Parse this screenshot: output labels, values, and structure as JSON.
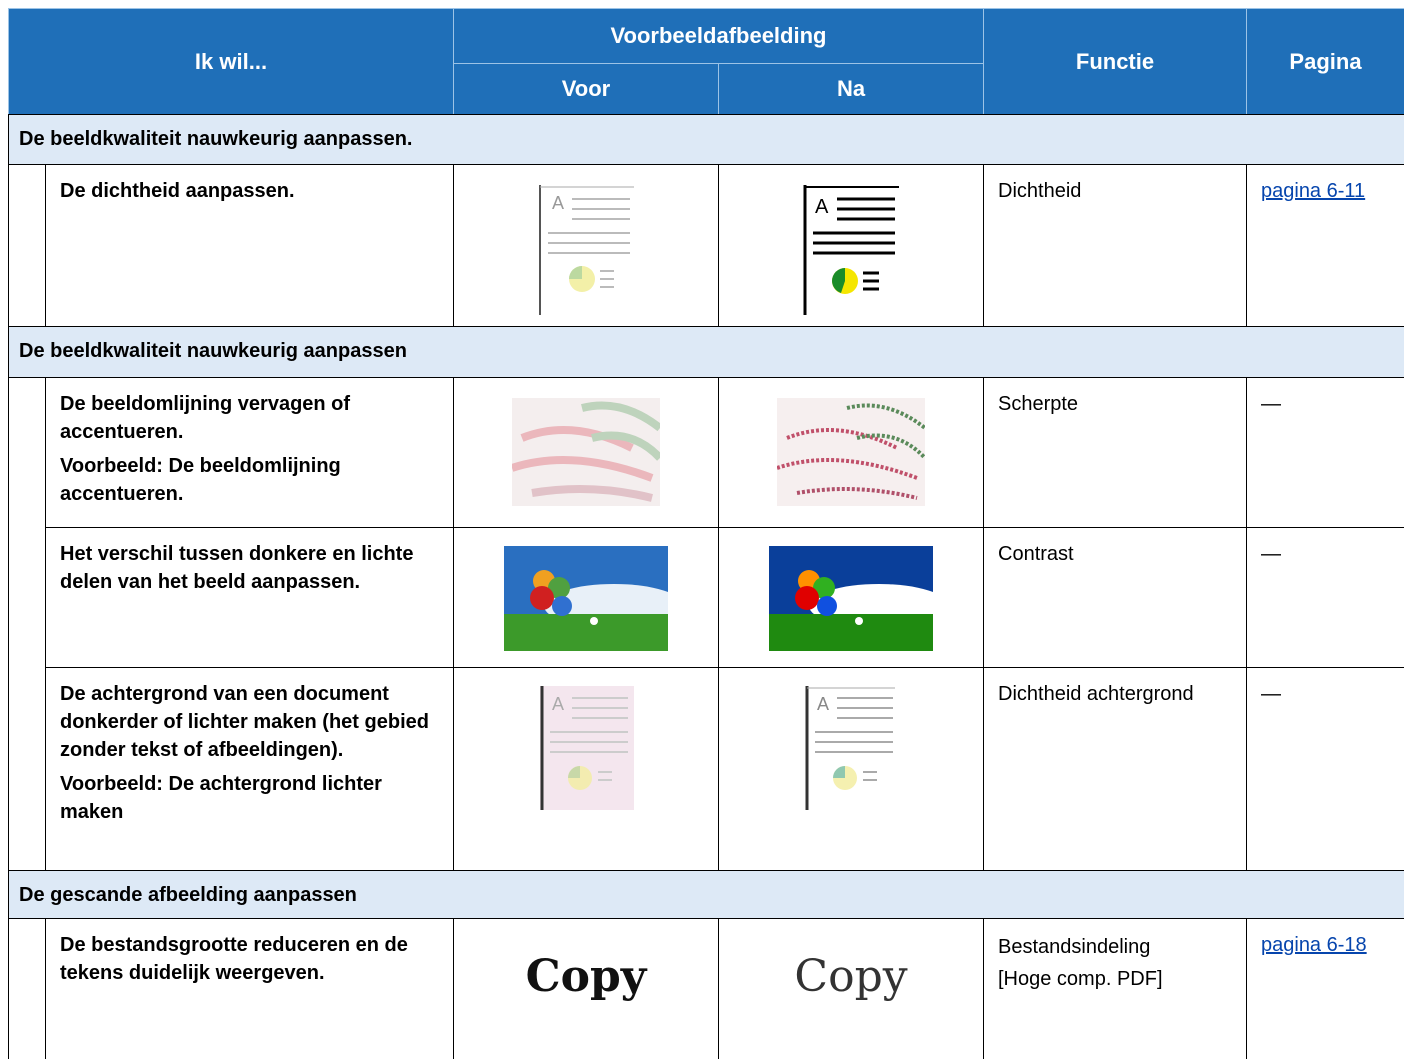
{
  "header": {
    "task": "Ik wil...",
    "preview": "Voorbeeldafbeelding",
    "before": "Voor",
    "after": "Na",
    "function": "Functie",
    "page": "Pagina"
  },
  "sections": [
    {
      "title": "De beeldkwaliteit nauwkeurig aanpassen.",
      "rows": [
        {
          "task": [
            "De dichtheid aanpassen."
          ],
          "function": [
            "Dichtheid"
          ],
          "page": "pagina 6-11"
        }
      ]
    },
    {
      "title": "De beeldkwaliteit nauwkeurig aanpassen",
      "rows": [
        {
          "task": [
            "De beeldomlijning vervagen of accentueren.",
            "Voorbeeld: De beeldomlijning accentueren."
          ],
          "function": [
            "Scherpte"
          ],
          "page": "—"
        },
        {
          "task": [
            "Het verschil tussen donkere en lichte delen van het beeld aanpassen."
          ],
          "function": [
            "Contrast"
          ],
          "page": "—"
        },
        {
          "task": [
            "De achtergrond van een document donkerder of lichter maken (het gebied zonder tekst of afbeeldingen).",
            "Voorbeeld: De achtergrond lichter maken"
          ],
          "function": [
            "Dichtheid achtergrond"
          ],
          "page": "—"
        }
      ]
    },
    {
      "title": "De gescande afbeelding aanpassen",
      "rows": [
        {
          "task": [
            "De bestandsgrootte reduceren en de tekens duidelijk weergeven."
          ],
          "before_text": "Copy",
          "after_text": "Copy",
          "function": [
            "Bestandsindeling",
            "[Hoge comp. PDF]"
          ],
          "page": "pagina 6-18"
        }
      ]
    }
  ]
}
